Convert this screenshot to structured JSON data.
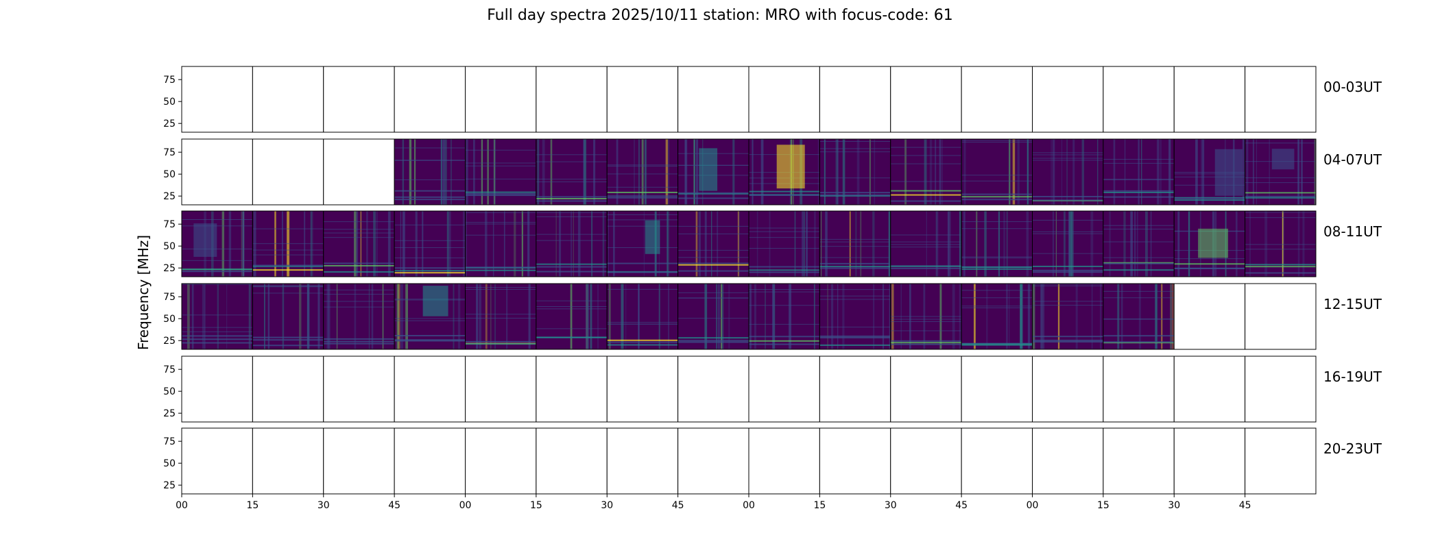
{
  "figure_title": "Full day spectra 2025/10/11 station: MRO with focus-code: 61",
  "chart_data": {
    "type": "heatmap",
    "title": "Full day spectra 2025/10/11 station: MRO with focus-code: 61",
    "xlabel": "",
    "ylabel": "Frequency [MHz]",
    "ylim": [
      15,
      90
    ],
    "yticks": [
      "25",
      "50",
      "75"
    ],
    "xtick_labels": [
      "00",
      "15",
      "30",
      "45",
      "00",
      "15",
      "30",
      "45",
      "00",
      "15",
      "30",
      "45",
      "00",
      "15",
      "30",
      "45"
    ],
    "panels_per_row": 16,
    "panel_minutes": 15,
    "rows": [
      {
        "label": "00-03UT",
        "data_panels": []
      },
      {
        "label": "04-07UT",
        "data_panels": [
          3,
          4,
          5,
          6,
          7,
          8,
          9,
          10,
          11,
          12,
          13,
          14,
          15
        ]
      },
      {
        "label": "08-11UT",
        "data_panels": [
          0,
          1,
          2,
          3,
          4,
          5,
          6,
          7,
          8,
          9,
          10,
          11,
          12,
          13,
          14,
          15
        ]
      },
      {
        "label": "12-15UT",
        "data_panels": [
          0,
          1,
          2,
          3,
          4,
          5,
          6,
          7,
          8,
          9,
          10,
          11,
          12,
          13
        ]
      },
      {
        "label": "16-19UT",
        "data_panels": []
      },
      {
        "label": "20-23UT",
        "data_panels": []
      }
    ],
    "colormap": [
      "#440154",
      "#3b528b",
      "#21918c",
      "#5ec962",
      "#fde725"
    ]
  }
}
